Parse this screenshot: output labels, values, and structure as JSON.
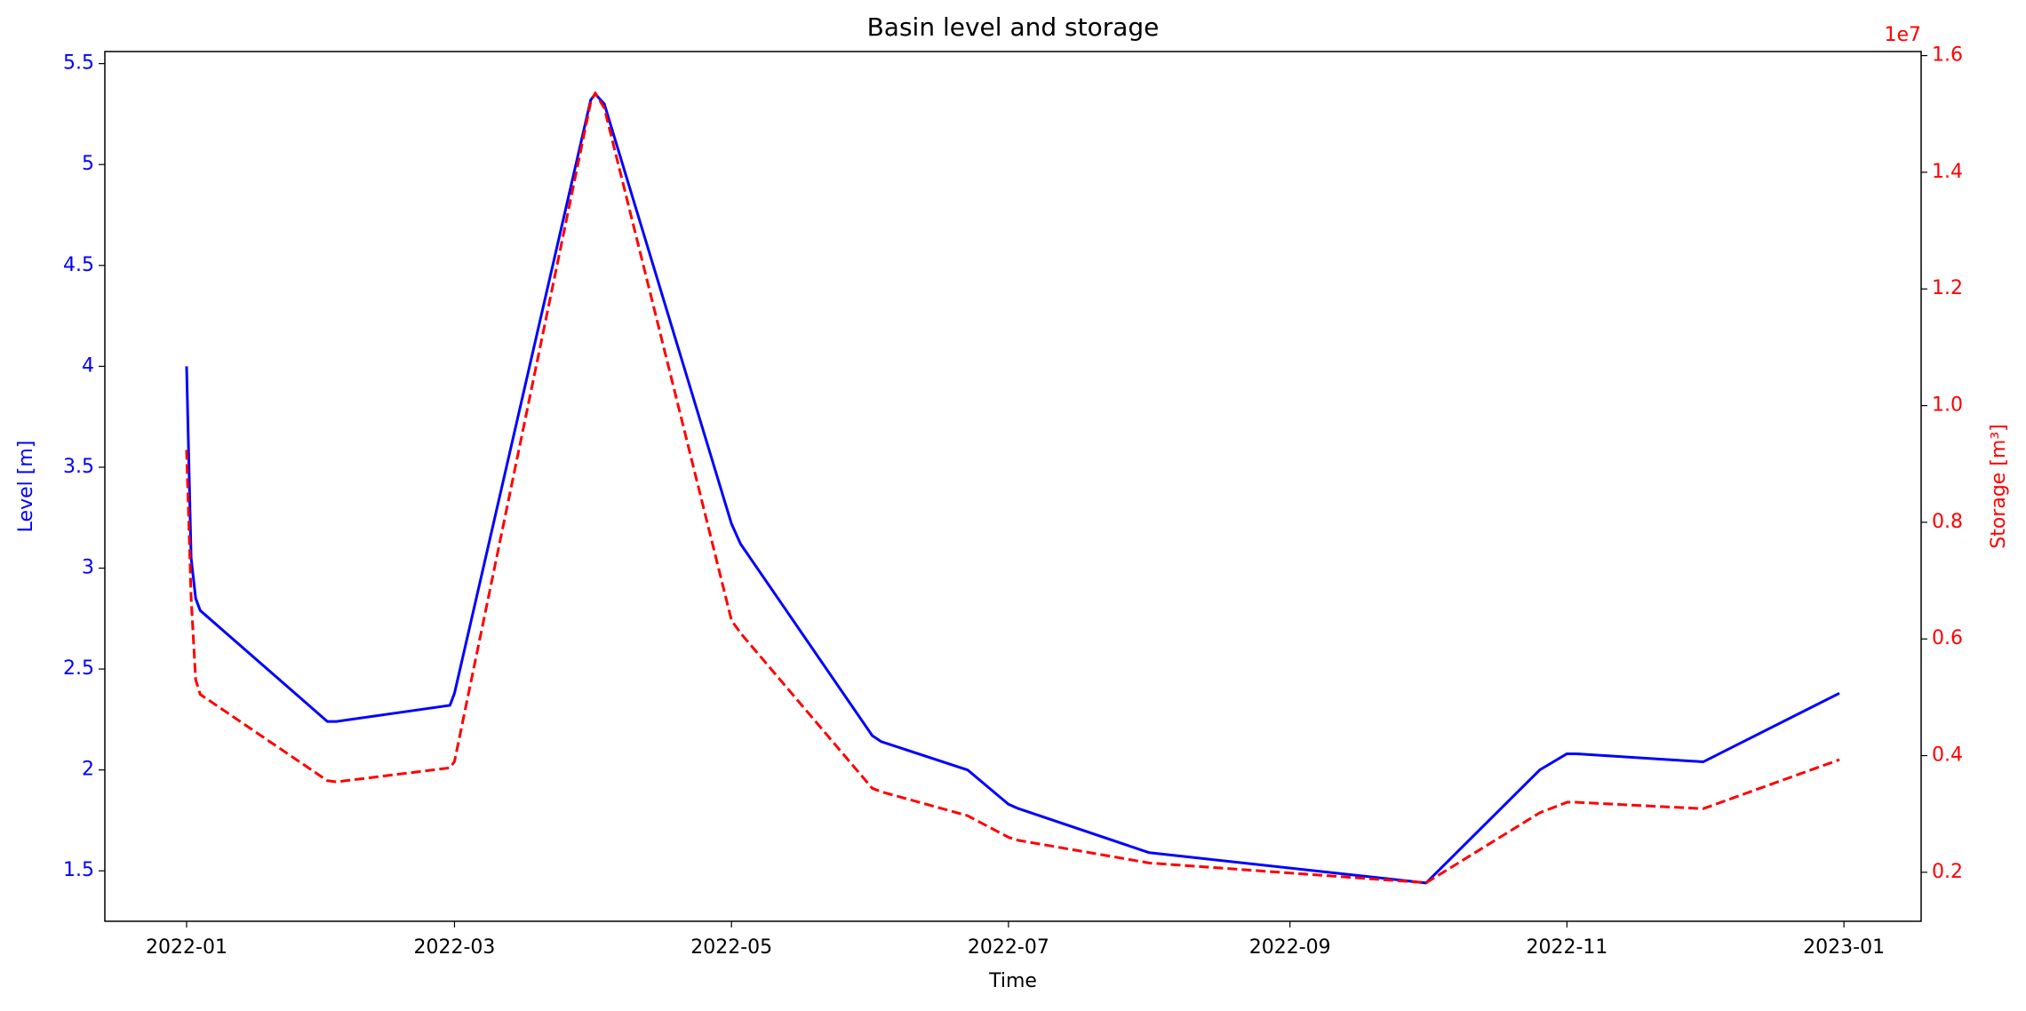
{
  "chart_data": {
    "type": "line",
    "title": "Basin level and storage",
    "xlabel": "Time",
    "ylabel": "Level [m]",
    "y2label": "Storage [m³]",
    "y2_offset_label": "1e7",
    "x": [
      "2022-01-01",
      "2022-01-02",
      "2022-01-03",
      "2022-01-04",
      "2022-02-01",
      "2022-02-03",
      "2022-02-28",
      "2022-03-01",
      "2022-03-31",
      "2022-04-01",
      "2022-04-03",
      "2022-05-01",
      "2022-05-03",
      "2022-06-01",
      "2022-06-03",
      "2022-06-22",
      "2022-07-01",
      "2022-07-03",
      "2022-08-01",
      "2022-10-01",
      "2022-10-26",
      "2022-11-01",
      "2022-11-03",
      "2022-12-01",
      "2022-12-31"
    ],
    "series": [
      {
        "color": "#0000ff",
        "linestyle": "solid",
        "values": [
          4.0,
          3.05,
          2.85,
          2.79,
          2.24,
          2.24,
          2.32,
          2.38,
          5.32,
          5.35,
          5.3,
          3.22,
          3.12,
          2.17,
          2.14,
          2.0,
          1.83,
          1.81,
          1.59,
          1.44,
          2.0,
          2.08,
          2.08,
          2.04,
          2.38
        ]
      },
      {
        "color": "#ff0000",
        "linestyle": "dashed",
        "axis": "y2",
        "values": [
          9240000,
          6700000,
          5300000,
          5050000,
          3570000,
          3550000,
          3790000,
          3900000,
          15200000,
          15360000,
          15100000,
          6320000,
          6100000,
          3440000,
          3380000,
          2970000,
          2600000,
          2550000,
          2160000,
          1820000,
          3020000,
          3200000,
          3200000,
          3090000,
          3930000
        ]
      }
    ],
    "xlim": [
      "2021-12-14",
      "2023-01-18"
    ],
    "xticks": [
      {
        "value": "2022-01-01",
        "label": "2022-01"
      },
      {
        "value": "2022-03-01",
        "label": "2022-03"
      },
      {
        "value": "2022-05-01",
        "label": "2022-05"
      },
      {
        "value": "2022-07-01",
        "label": "2022-07"
      },
      {
        "value": "2022-09-01",
        "label": "2022-09"
      },
      {
        "value": "2022-11-01",
        "label": "2022-11"
      },
      {
        "value": "2023-01-01",
        "label": "2023-01"
      }
    ],
    "ylim": [
      1.25,
      5.56
    ],
    "yticks": [
      1.5,
      2.0,
      2.5,
      3.0,
      3.5,
      4.0,
      4.5,
      5.0,
      5.5
    ],
    "y2lim": [
      1160000,
      16070000
    ],
    "y2ticks": [
      {
        "value": 2000000,
        "label": "0.2"
      },
      {
        "value": 4000000,
        "label": "0.4"
      },
      {
        "value": 6000000,
        "label": "0.6"
      },
      {
        "value": 8000000,
        "label": "0.8"
      },
      {
        "value": 10000000,
        "label": "1.0"
      },
      {
        "value": 12000000,
        "label": "1.2"
      },
      {
        "value": 14000000,
        "label": "1.4"
      },
      {
        "value": 16000000,
        "label": "1.6"
      }
    ],
    "grid": false
  }
}
